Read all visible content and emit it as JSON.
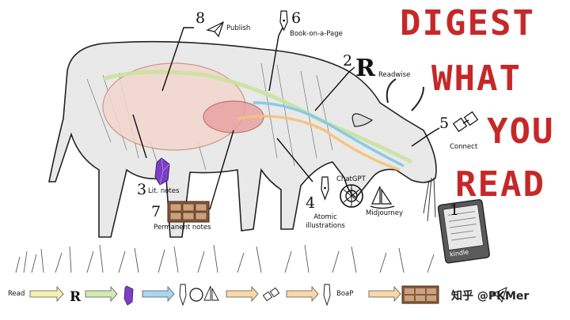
{
  "title": {
    "lines": [
      "DIGEST",
      "WHAT",
      "YOU",
      "READ"
    ],
    "color": "#c62828"
  },
  "steps": [
    {
      "number": "1",
      "label": "",
      "icon": "kindle-device-icon",
      "device_text": "kindle"
    },
    {
      "number": "2",
      "label": "Readwise",
      "icon": "readwise-r-icon"
    },
    {
      "number": "3",
      "label": "Lit. notes",
      "icon": "purple-crystal-icon"
    },
    {
      "number": "4",
      "label": "Atomic illustrations",
      "icon": "pen-nib-icon"
    },
    {
      "number": "5",
      "label": "Connect",
      "icon": "plug-connect-icon"
    },
    {
      "number": "6",
      "label": "Book-on-a-Page",
      "icon": "pen-nib-icon"
    },
    {
      "number": "7",
      "label": "Permanent notes",
      "icon": "card-drawer-icon"
    },
    {
      "number": "8",
      "label": "Publish",
      "icon": "paper-plane-icon"
    }
  ],
  "tools": {
    "chatgpt": "ChatGPT",
    "midjourney": "Midjourney"
  },
  "flow": {
    "start_label": "Read",
    "r_letter": "R",
    "boap_label": "BoaP"
  },
  "watermark": "知乎 @PKMer",
  "colors": {
    "flow_green": "#c9e3a0",
    "flow_blue": "#7ec8e8",
    "flow_orange": "#f5c27a",
    "stomach_pink": "#e8a0a0",
    "crystal_purple": "#7b3fc4"
  }
}
